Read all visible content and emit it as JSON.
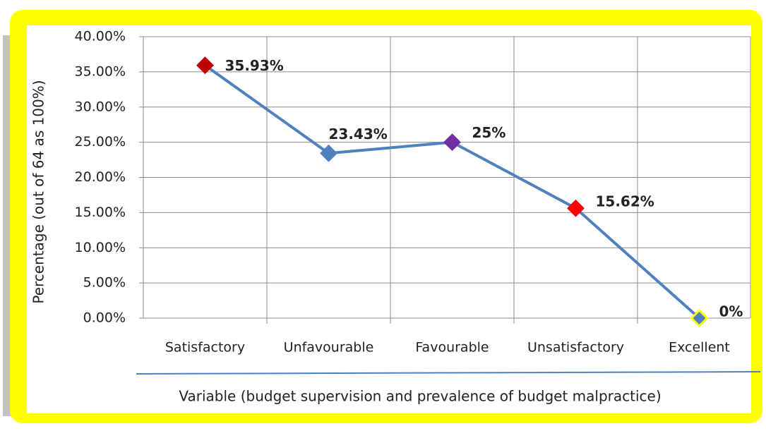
{
  "chart_data": {
    "type": "line",
    "categories": [
      "Satisfactory",
      "Unfavourable",
      "Favourable",
      "Unsatisfactory",
      "Excellent"
    ],
    "series": [
      {
        "name": "Percentage",
        "color": "#4f81bd",
        "values": [
          35.93,
          23.43,
          25,
          15.62,
          0
        ],
        "value_labels": [
          "35.93%",
          "23.43%",
          "25%",
          "15.62%",
          "0%"
        ],
        "marker_colors": [
          "#c00000",
          "#4f81bd",
          "#7030a0",
          "#ff0000",
          "#ffff00"
        ]
      }
    ],
    "ylim": [
      0,
      40
    ],
    "yticks": [
      {
        "value": 0,
        "label": "0.00%"
      },
      {
        "value": 5,
        "label": "5.00%"
      },
      {
        "value": 10,
        "label": "10.00%"
      },
      {
        "value": 15,
        "label": "15.00%"
      },
      {
        "value": 20,
        "label": "20.00%"
      },
      {
        "value": 25,
        "label": "25.00%"
      },
      {
        "value": 30,
        "label": "30.00%"
      },
      {
        "value": 35,
        "label": "35.00%"
      },
      {
        "value": 40,
        "label": "40.00%"
      }
    ],
    "ylabel": "Percentage (out of 64 as 100%)",
    "xlabel": "Variable (budget supervision and prevalence of budget malpractice)",
    "grid": true
  }
}
